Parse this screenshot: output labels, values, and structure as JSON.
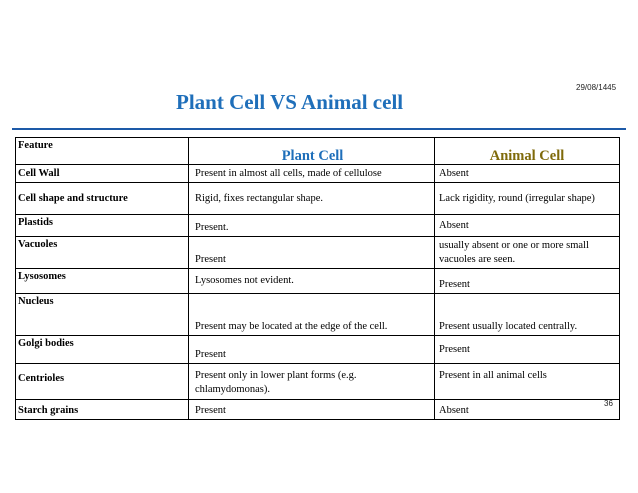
{
  "slide": {
    "date": "29/08/1445",
    "title": "Plant Cell VS Animal cell",
    "slide_number": "36",
    "colors": {
      "title": "#1f6fba",
      "rule": "#1d5aa8",
      "animal_header": "#7f6a0a"
    }
  },
  "table": {
    "headers": {
      "feature": "Feature",
      "plant": "Plant Cell",
      "animal": "Animal Cell"
    },
    "rows": [
      {
        "feature": "Cell Wall",
        "plant": "Present in almost all cells, made of cellulose",
        "animal": "Absent"
      },
      {
        "feature": "Cell shape and structure",
        "plant": "Rigid, fixes  rectangular shape.",
        "animal": "Lack rigidity, round (irregular shape)"
      },
      {
        "feature": "Plastids",
        "plant": "Present.",
        "animal": "Absent"
      },
      {
        "feature": "Vacuoles",
        "plant": "Present",
        "animal": "usually absent or one or more small vacuoles are seen."
      },
      {
        "feature": "Lysosomes",
        "plant": "Lysosomes not evident.",
        "animal": "Present"
      },
      {
        "feature": "Nucleus",
        "plant": "Present may be located at the edge of the cell.",
        "animal": "Present usually located centrally."
      },
      {
        "feature": "Golgi bodies",
        "plant": "Present",
        "animal": "Present"
      },
      {
        "feature": "Centrioles",
        "plant": "Present only in lower plant forms (e.g. chlamydomonas).",
        "animal": "Present in all animal cells"
      },
      {
        "feature": "Starch grains",
        "plant": "Present",
        "animal": "Absent"
      }
    ]
  }
}
